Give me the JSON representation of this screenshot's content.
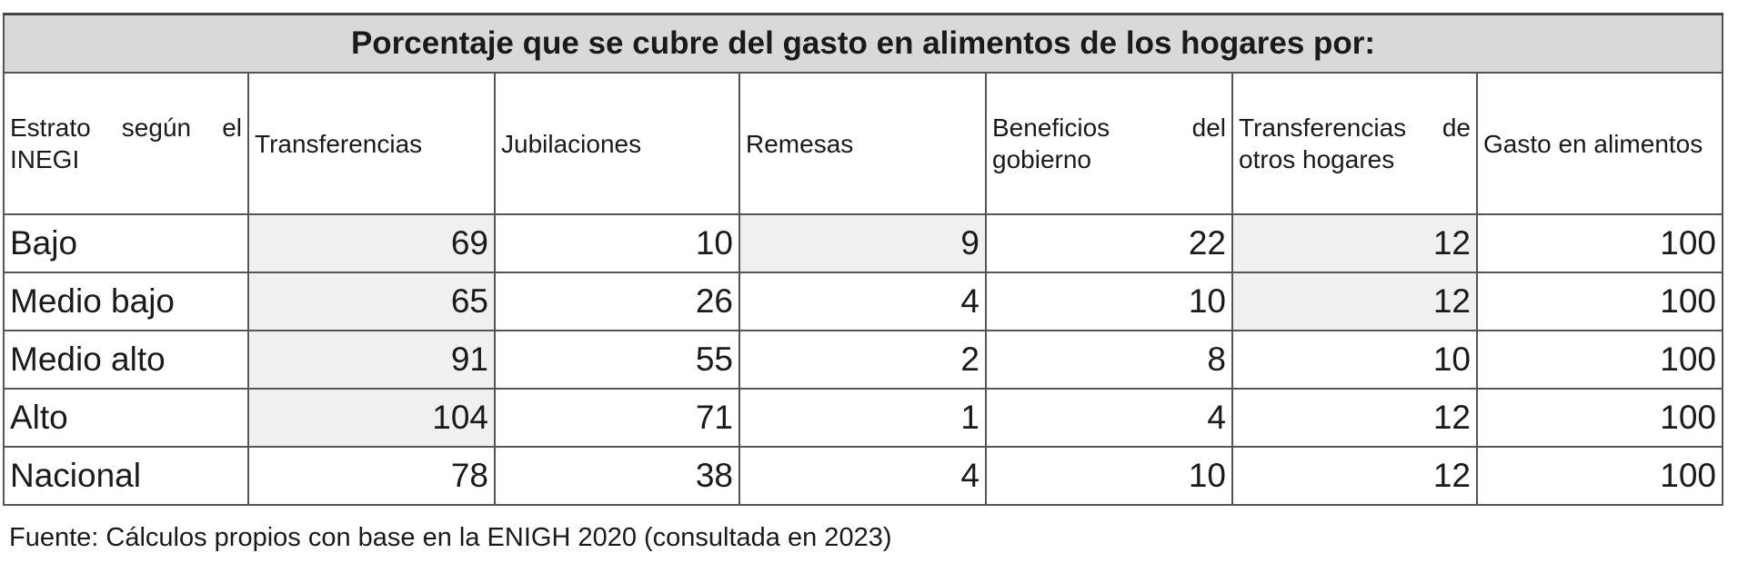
{
  "title": "Porcentaje que se cubre del gasto en alimentos de los hogares por:",
  "headers": [
    "Estrato según el INEGI",
    "Transferencias",
    "Jubilaciones",
    "Remesas",
    "Beneficios del gobierno",
    "Transferencias de otros hogares",
    "Gasto en alimentos"
  ],
  "rows": [
    {
      "label": "Bajo",
      "values": [
        "69",
        "10",
        "9",
        "22",
        "12",
        "100"
      ]
    },
    {
      "label": "Medio bajo",
      "values": [
        "65",
        "26",
        "4",
        "10",
        "12",
        "100"
      ]
    },
    {
      "label": "Medio alto",
      "values": [
        "91",
        "55",
        "2",
        "8",
        "10",
        "100"
      ]
    },
    {
      "label": "Alto",
      "values": [
        "104",
        "71",
        "1",
        "4",
        "12",
        "100"
      ]
    },
    {
      "label": "Nacional",
      "values": [
        "78",
        "38",
        "4",
        "10",
        "12",
        "100"
      ]
    }
  ],
  "footer": "Fuente: Cálculos propios con base en la ENIGH 2020 (consultada en 2023)"
}
